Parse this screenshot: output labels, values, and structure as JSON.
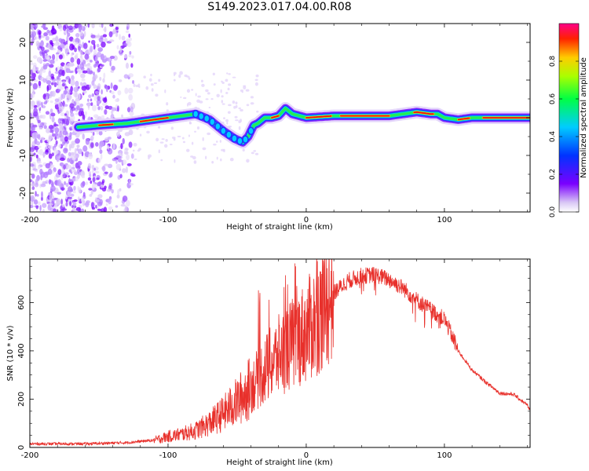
{
  "title": "S149.2023.017.04.00.R08",
  "chart_data": [
    {
      "type": "heatmap",
      "xlabel": "Height of straight line (km)",
      "ylabel": "Frequency (Hz)",
      "xlim": [
        -200,
        162
      ],
      "ylim": [
        -25,
        25
      ],
      "xticks": [
        -200,
        -100,
        0,
        100
      ],
      "yticks": [
        -20,
        -10,
        0,
        10,
        20
      ],
      "colorbar": {
        "label": "Normalized spectral amplitude",
        "range": [
          0,
          1
        ],
        "ticks": [
          "0.0",
          "0.2",
          "0.4",
          "0.6",
          "0.8"
        ]
      },
      "ridge": {
        "x": [
          -165,
          -150,
          -130,
          -110,
          -90,
          -80,
          -70,
          -60,
          -52,
          -46,
          -42,
          -38,
          -35,
          -30,
          -25,
          -20,
          -15,
          -10,
          0,
          20,
          40,
          60,
          70,
          80,
          90,
          95,
          100,
          110,
          120,
          140,
          162
        ],
        "y": [
          -2.5,
          -2,
          -1.5,
          -0.5,
          0.5,
          1,
          -0.5,
          -3.5,
          -5.5,
          -6.5,
          -5,
          -2,
          -1.5,
          0,
          0,
          0.5,
          2.5,
          1,
          0,
          0.5,
          0.5,
          0.5,
          1,
          1.5,
          1,
          1,
          0,
          -0.5,
          0,
          0,
          0
        ]
      }
    },
    {
      "type": "line",
      "xlabel": "Height of straight line (km)",
      "ylabel": "SNR (10 * v/v)",
      "xlim": [
        -200,
        162
      ],
      "ylim": [
        0,
        780
      ],
      "xticks": [
        -200,
        -100,
        0,
        100
      ],
      "yticks": [
        0,
        200,
        400,
        600
      ],
      "color": "#e8302b",
      "envelope": {
        "x": [
          -200,
          -160,
          -130,
          -110,
          -100,
          -90,
          -80,
          -70,
          -60,
          -50,
          -40,
          -30,
          -20,
          -10,
          0,
          10,
          20,
          30,
          40,
          50,
          60,
          70,
          80,
          90,
          100,
          105,
          110,
          120,
          130,
          140,
          150,
          160,
          162
        ],
        "y": [
          15,
          15,
          20,
          30,
          45,
          55,
          70,
          100,
          140,
          190,
          250,
          320,
          380,
          430,
          480,
          550,
          640,
          690,
          710,
          715,
          695,
          660,
          610,
          570,
          530,
          470,
          400,
          320,
          270,
          225,
          220,
          175,
          150
        ]
      }
    }
  ]
}
